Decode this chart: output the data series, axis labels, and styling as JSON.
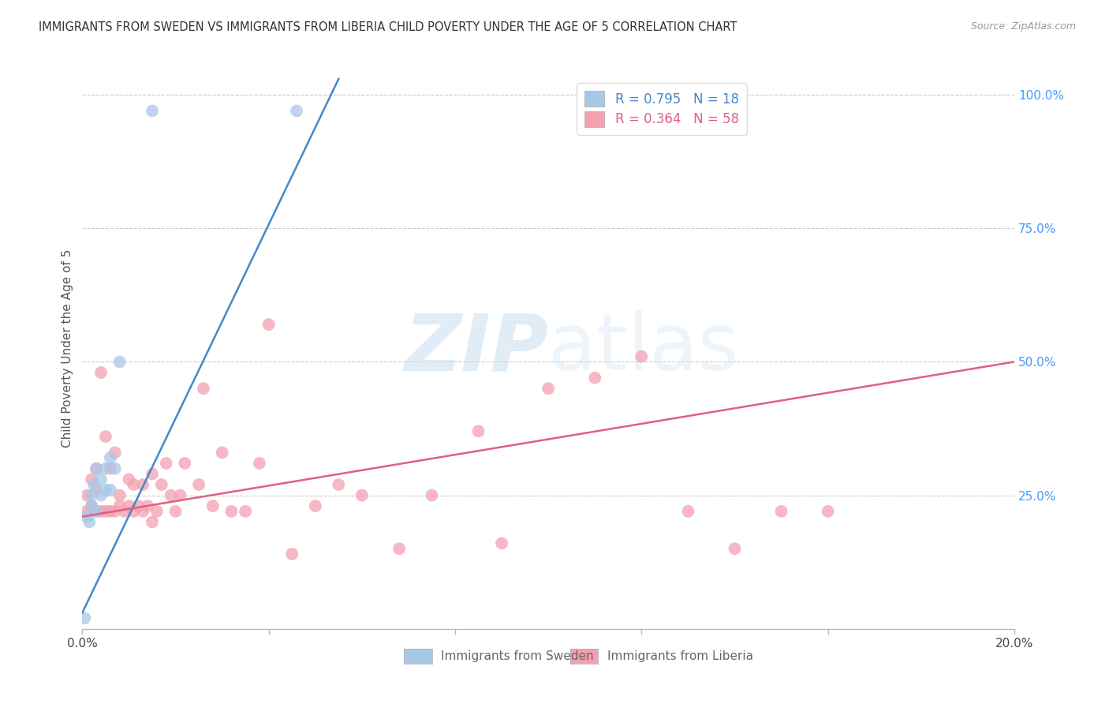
{
  "title": "IMMIGRANTS FROM SWEDEN VS IMMIGRANTS FROM LIBERIA CHILD POVERTY UNDER THE AGE OF 5 CORRELATION CHART",
  "source": "Source: ZipAtlas.com",
  "xlabel_sweden": "Immigrants from Sweden",
  "xlabel_liberia": "Immigrants from Liberia",
  "ylabel": "Child Poverty Under the Age of 5",
  "xlim": [
    0.0,
    0.2
  ],
  "ylim": [
    0.0,
    1.05
  ],
  "yticks": [
    0.25,
    0.5,
    0.75,
    1.0
  ],
  "ytick_labels": [
    "25.0%",
    "50.0%",
    "75.0%",
    "100.0%"
  ],
  "xticks": [
    0.0,
    0.04,
    0.08,
    0.12,
    0.16,
    0.2
  ],
  "xtick_labels": [
    "0.0%",
    "",
    "",
    "",
    "",
    "20.0%"
  ],
  "legend_sweden_R": "0.795",
  "legend_sweden_N": "18",
  "legend_liberia_R": "0.364",
  "legend_liberia_N": "58",
  "sweden_color": "#a8c8e8",
  "liberia_color": "#f4a0b0",
  "sweden_line_color": "#4488cc",
  "liberia_line_color": "#e06080",
  "watermark_zip": "ZIP",
  "watermark_atlas": "atlas",
  "sweden_x": [
    0.0005,
    0.001,
    0.0015,
    0.002,
    0.002,
    0.0025,
    0.003,
    0.003,
    0.004,
    0.004,
    0.005,
    0.005,
    0.006,
    0.006,
    0.007,
    0.008,
    0.015,
    0.046
  ],
  "sweden_y": [
    0.02,
    0.21,
    0.2,
    0.23,
    0.25,
    0.27,
    0.22,
    0.3,
    0.25,
    0.28,
    0.26,
    0.3,
    0.26,
    0.32,
    0.3,
    0.5,
    0.97,
    0.97
  ],
  "liberia_x": [
    0.001,
    0.001,
    0.002,
    0.002,
    0.003,
    0.003,
    0.003,
    0.004,
    0.004,
    0.005,
    0.005,
    0.006,
    0.006,
    0.007,
    0.007,
    0.008,
    0.008,
    0.009,
    0.01,
    0.01,
    0.011,
    0.011,
    0.012,
    0.013,
    0.013,
    0.014,
    0.015,
    0.015,
    0.016,
    0.017,
    0.018,
    0.019,
    0.02,
    0.021,
    0.022,
    0.025,
    0.026,
    0.028,
    0.03,
    0.032,
    0.035,
    0.038,
    0.04,
    0.045,
    0.05,
    0.055,
    0.06,
    0.068,
    0.075,
    0.085,
    0.09,
    0.1,
    0.11,
    0.12,
    0.13,
    0.14,
    0.15,
    0.16
  ],
  "liberia_y": [
    0.22,
    0.25,
    0.23,
    0.28,
    0.22,
    0.26,
    0.3,
    0.22,
    0.48,
    0.22,
    0.36,
    0.22,
    0.3,
    0.22,
    0.33,
    0.23,
    0.25,
    0.22,
    0.23,
    0.28,
    0.22,
    0.27,
    0.23,
    0.22,
    0.27,
    0.23,
    0.2,
    0.29,
    0.22,
    0.27,
    0.31,
    0.25,
    0.22,
    0.25,
    0.31,
    0.27,
    0.45,
    0.23,
    0.33,
    0.22,
    0.22,
    0.31,
    0.57,
    0.14,
    0.23,
    0.27,
    0.25,
    0.15,
    0.25,
    0.37,
    0.16,
    0.45,
    0.47,
    0.51,
    0.22,
    0.15,
    0.22,
    0.22
  ],
  "sweden_line_x": [
    0.0,
    0.055
  ],
  "sweden_line_y": [
    0.03,
    1.03
  ],
  "liberia_line_x": [
    0.0,
    0.2
  ],
  "liberia_line_y": [
    0.21,
    0.5
  ]
}
